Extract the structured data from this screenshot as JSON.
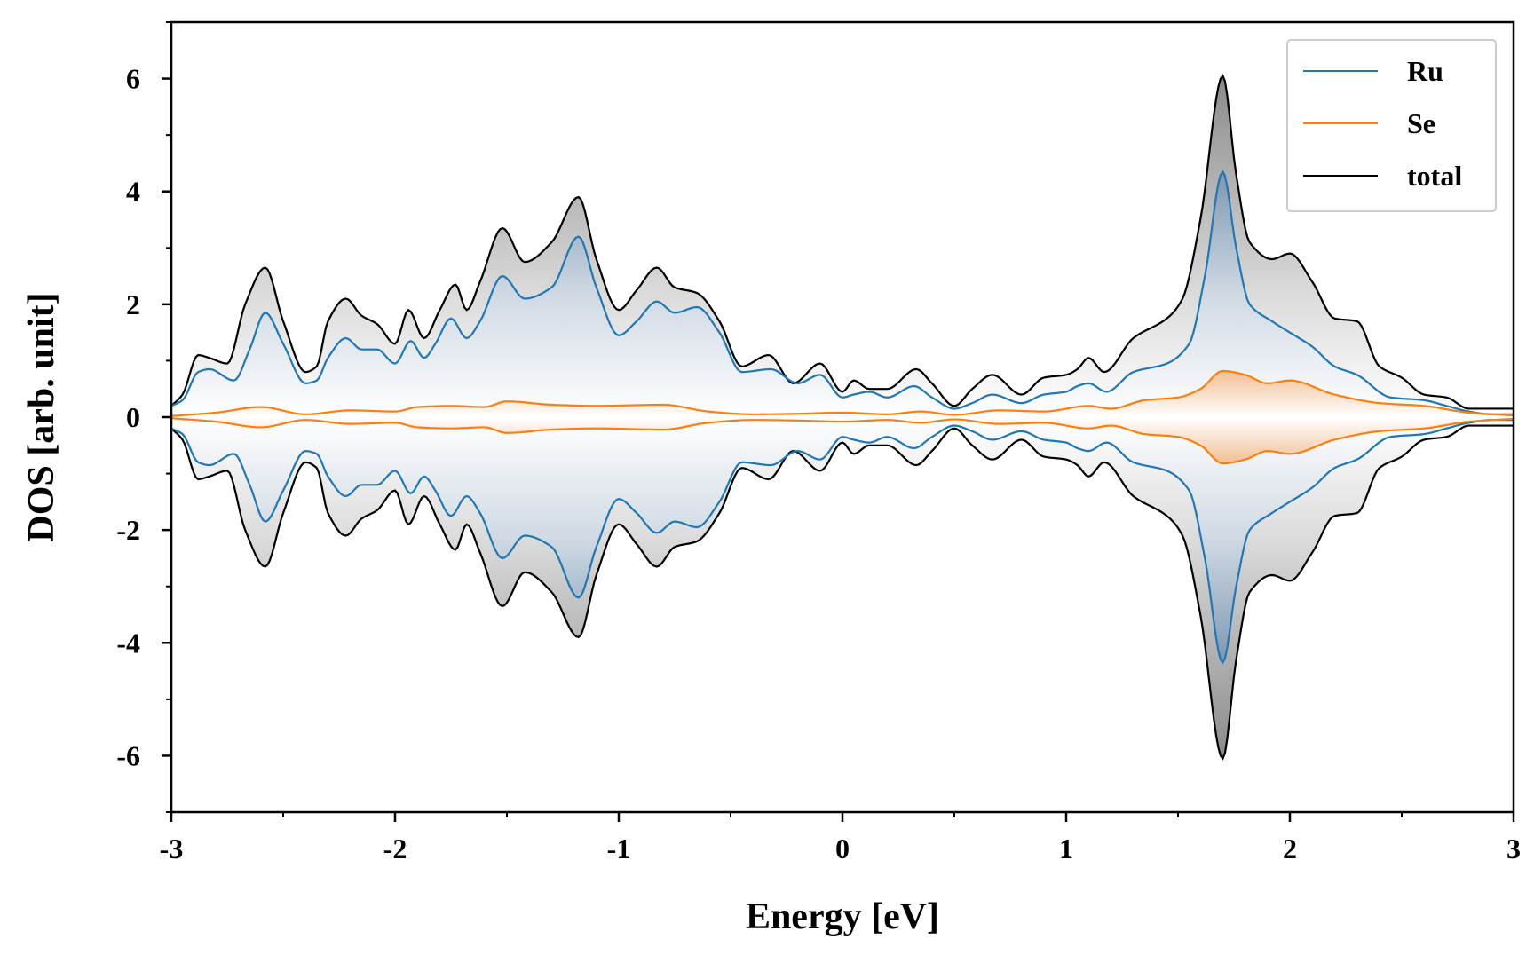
{
  "chart_data": {
    "type": "area",
    "title": "",
    "xlabel": "Energy [eV]",
    "ylabel": "DOS [arb. unit]",
    "xlim": [
      -3,
      3
    ],
    "ylim": [
      -7,
      7
    ],
    "x_ticks": [
      "-3",
      "-2",
      "-1",
      "0",
      "1",
      "2",
      "3"
    ],
    "y_ticks": [
      "-6",
      "-4",
      "-2",
      "0",
      "2",
      "4",
      "6"
    ],
    "legend_position": "top-right",
    "grid": false,
    "mirrored_spin": true,
    "series": [
      {
        "name": "Ru",
        "color": "#1f77b4",
        "x": [
          -3,
          -2.95,
          -2.88,
          -2.83,
          -2.72,
          -2.65,
          -2.58,
          -2.5,
          -2.4,
          -2.35,
          -2.3,
          -2.22,
          -2.15,
          -2.08,
          -2.0,
          -1.93,
          -1.87,
          -1.82,
          -1.75,
          -1.68,
          -1.62,
          -1.52,
          -1.42,
          -1.3,
          -1.18,
          -1.1,
          -1.0,
          -0.92,
          -0.83,
          -0.75,
          -0.65,
          -0.55,
          -0.45,
          -0.32,
          -0.2,
          -0.1,
          0.0,
          0.05,
          0.12,
          0.2,
          0.32,
          0.4,
          0.5,
          0.58,
          0.67,
          0.8,
          0.9,
          1.0,
          1.05,
          1.1,
          1.18,
          1.3,
          1.45,
          1.55,
          1.62,
          1.7,
          1.76,
          1.82,
          1.92,
          2.0,
          2.1,
          2.2,
          2.3,
          2.45,
          2.6,
          2.7,
          2.8,
          2.9,
          3.0
        ],
        "values": [
          0.2,
          0.3,
          0.8,
          0.85,
          0.65,
          1.2,
          1.85,
          1.3,
          0.6,
          0.65,
          1.05,
          1.4,
          1.2,
          1.2,
          0.95,
          1.35,
          1.05,
          1.3,
          1.75,
          1.4,
          1.7,
          2.5,
          2.1,
          2.3,
          3.2,
          2.3,
          1.45,
          1.7,
          2.05,
          1.85,
          1.95,
          1.5,
          0.8,
          0.85,
          0.6,
          0.75,
          0.35,
          0.4,
          0.45,
          0.35,
          0.55,
          0.35,
          0.15,
          0.25,
          0.4,
          0.25,
          0.4,
          0.45,
          0.55,
          0.6,
          0.45,
          0.8,
          0.95,
          1.3,
          2.5,
          4.35,
          3.0,
          2.0,
          1.7,
          1.5,
          1.25,
          0.9,
          0.75,
          0.35,
          0.3,
          0.2,
          0.1,
          0.05,
          0.05
        ]
      },
      {
        "name": "Se",
        "color": "#ff7f0e",
        "x": [
          -3,
          -2.8,
          -2.6,
          -2.4,
          -2.2,
          -2.0,
          -1.9,
          -1.75,
          -1.6,
          -1.5,
          -1.3,
          -1.1,
          -0.8,
          -0.6,
          -0.4,
          -0.2,
          0.0,
          0.2,
          0.35,
          0.5,
          0.7,
          0.9,
          1.1,
          1.2,
          1.35,
          1.5,
          1.6,
          1.7,
          1.8,
          1.9,
          2.0,
          2.2,
          2.4,
          2.6,
          2.8,
          3.0
        ],
        "values": [
          0.02,
          0.08,
          0.18,
          0.05,
          0.12,
          0.1,
          0.18,
          0.2,
          0.18,
          0.28,
          0.22,
          0.2,
          0.22,
          0.1,
          0.05,
          0.06,
          0.08,
          0.05,
          0.1,
          0.04,
          0.12,
          0.1,
          0.2,
          0.15,
          0.3,
          0.35,
          0.5,
          0.82,
          0.75,
          0.6,
          0.65,
          0.4,
          0.25,
          0.2,
          0.08,
          0.03
        ]
      },
      {
        "name": "total",
        "color": "#000000",
        "x": [
          -3,
          -2.95,
          -2.88,
          -2.83,
          -2.75,
          -2.67,
          -2.58,
          -2.5,
          -2.4,
          -2.35,
          -2.3,
          -2.22,
          -2.15,
          -2.08,
          -2.0,
          -1.94,
          -1.87,
          -1.8,
          -1.73,
          -1.68,
          -1.62,
          -1.52,
          -1.42,
          -1.3,
          -1.18,
          -1.1,
          -1.0,
          -0.92,
          -0.83,
          -0.75,
          -0.65,
          -0.55,
          -0.45,
          -0.33,
          -0.22,
          -0.1,
          0.0,
          0.05,
          0.12,
          0.2,
          0.33,
          0.4,
          0.5,
          0.58,
          0.67,
          0.8,
          0.9,
          1.0,
          1.05,
          1.1,
          1.17,
          1.3,
          1.45,
          1.52,
          1.6,
          1.7,
          1.76,
          1.82,
          1.92,
          2.0,
          2.1,
          2.2,
          2.3,
          2.4,
          2.5,
          2.6,
          2.7,
          2.8,
          2.9,
          3.0
        ],
        "values": [
          0.2,
          0.4,
          1.1,
          1.05,
          0.95,
          2.0,
          2.65,
          1.7,
          0.8,
          0.9,
          1.7,
          2.1,
          1.8,
          1.65,
          1.3,
          1.9,
          1.4,
          1.9,
          2.35,
          1.9,
          2.4,
          3.35,
          2.75,
          3.1,
          3.9,
          2.8,
          1.9,
          2.25,
          2.65,
          2.3,
          2.2,
          1.7,
          0.9,
          1.1,
          0.6,
          0.95,
          0.45,
          0.65,
          0.5,
          0.5,
          0.85,
          0.6,
          0.2,
          0.5,
          0.75,
          0.4,
          0.7,
          0.75,
          0.85,
          1.05,
          0.8,
          1.4,
          1.75,
          2.1,
          3.5,
          6.05,
          4.3,
          3.1,
          2.8,
          2.9,
          2.4,
          1.75,
          1.7,
          0.9,
          0.7,
          0.4,
          0.35,
          0.15,
          0.15,
          0.15
        ]
      }
    ]
  }
}
